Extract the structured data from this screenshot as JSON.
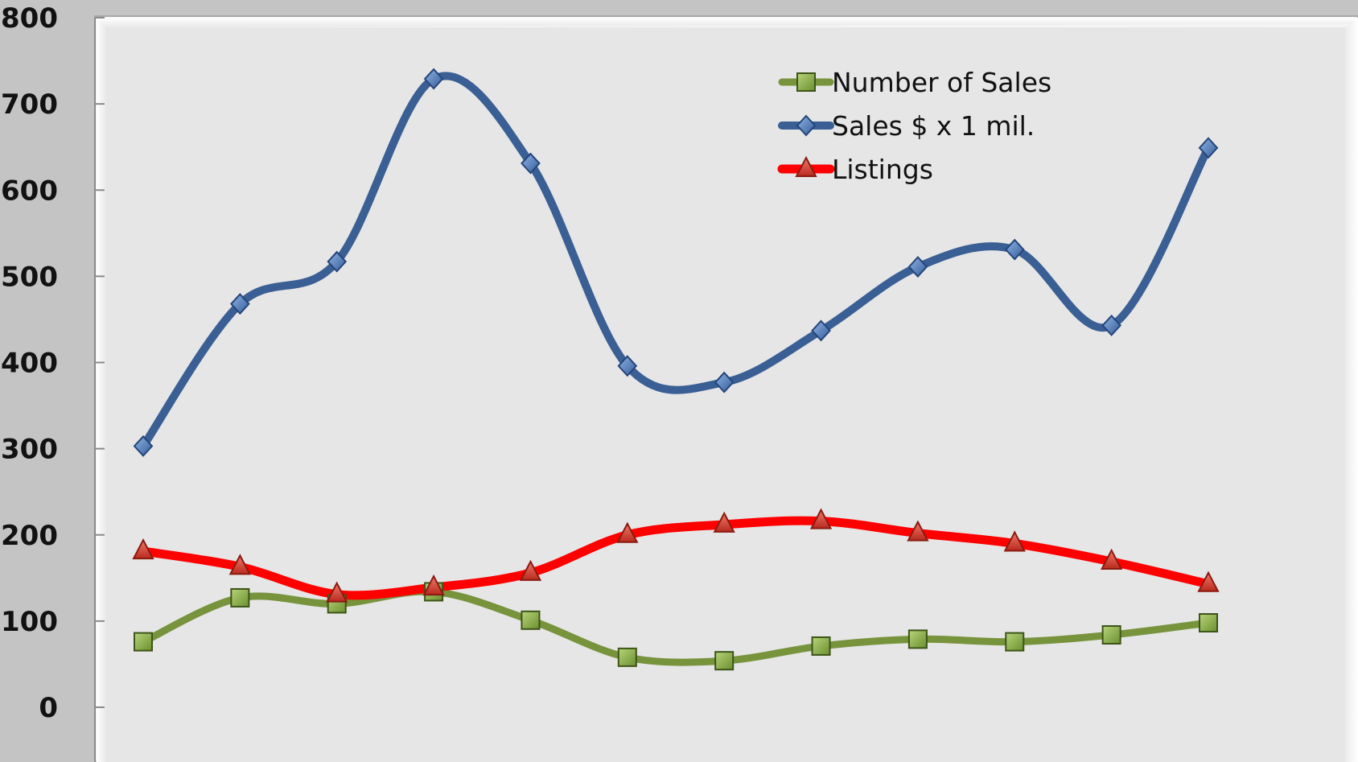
{
  "chart_data": {
    "type": "line",
    "title": "",
    "xlabel": "",
    "ylabel": "",
    "ylim": [
      0,
      800
    ],
    "ytick_step": 100,
    "y_ticks": [
      "0",
      "100",
      "200",
      "300",
      "400",
      "500",
      "600",
      "700",
      "800"
    ],
    "grid": false,
    "smooth": true,
    "legend_position": "top-right",
    "point_count": 12,
    "series": [
      {
        "name": "Number of Sales",
        "marker": "square",
        "color": "#77933c",
        "marker_color": "#8db040",
        "values": [
          76,
          127,
          120,
          134,
          101,
          58,
          54,
          71,
          79,
          76,
          84,
          98
        ]
      },
      {
        "name": "Sales $ x 1 mil.",
        "marker": "diamond",
        "color": "#3a5f94",
        "marker_color": "#4f81bd",
        "values": [
          303,
          468,
          517,
          729,
          631,
          396,
          377,
          437,
          511,
          531,
          443,
          649
        ]
      },
      {
        "name": "Listings",
        "marker": "triangle",
        "color": "#ff0000",
        "marker_color": "#d93a2b",
        "values": [
          181,
          163,
          131,
          139,
          156,
          200,
          212,
          216,
          202,
          190,
          169,
          143
        ]
      }
    ]
  }
}
